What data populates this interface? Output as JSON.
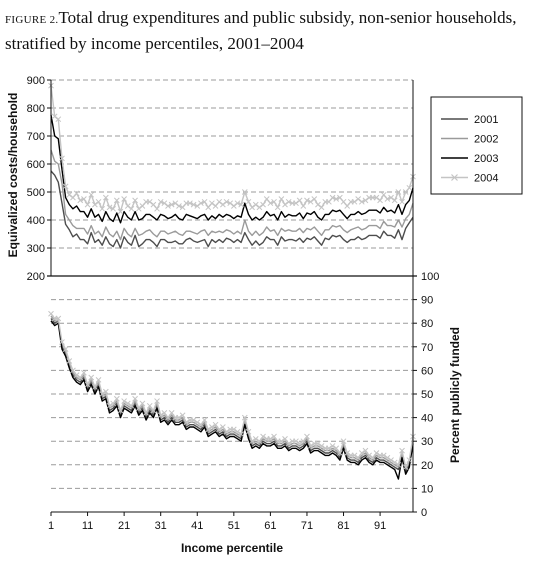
{
  "caption": {
    "label": "FIGURE 2.",
    "title": "Total drug expenditures and public subsidy, non-senior households, stratified by income percentiles, 2001–2004"
  },
  "chart_data": {
    "type": "line",
    "xlabel": "Income percentile",
    "ylabel_left": "Equivalized costs/household",
    "ylabel_right": "Percent publicly funded",
    "x_ticks": [
      "1",
      "11",
      "21",
      "31",
      "41",
      "51",
      "61",
      "71",
      "81",
      "91"
    ],
    "x_range": [
      1,
      100
    ],
    "top_panel": {
      "ylim": [
        200,
        900
      ],
      "y_ticks": [
        200,
        300,
        400,
        500,
        600,
        700,
        800,
        900
      ],
      "grid": true,
      "legend_position": "top-right",
      "series": [
        {
          "name": "2001",
          "color": "#4d4d4d",
          "marker": "none",
          "values": [
            575,
            560,
            535,
            460,
            385,
            365,
            340,
            350,
            330,
            330,
            315,
            355,
            320,
            330,
            310,
            340,
            315,
            305,
            330,
            300,
            340,
            320,
            310,
            345,
            305,
            315,
            330,
            330,
            320,
            305,
            330,
            330,
            320,
            320,
            325,
            315,
            315,
            330,
            335,
            325,
            320,
            325,
            330,
            305,
            330,
            320,
            330,
            320,
            335,
            330,
            320,
            330,
            320,
            355,
            330,
            310,
            325,
            310,
            320,
            340,
            330,
            330,
            310,
            340,
            325,
            330,
            330,
            325,
            335,
            320,
            335,
            330,
            340,
            325,
            310,
            335,
            330,
            345,
            340,
            345,
            330,
            320,
            330,
            330,
            340,
            330,
            335,
            345,
            345,
            345,
            335,
            360,
            345,
            345,
            335,
            365,
            330,
            370,
            390,
            410
          ]
        },
        {
          "name": "2002",
          "color": "#9a9a9a",
          "marker": "none",
          "values": [
            650,
            610,
            600,
            530,
            420,
            400,
            380,
            370,
            370,
            370,
            350,
            380,
            350,
            360,
            340,
            375,
            350,
            340,
            360,
            330,
            370,
            350,
            340,
            370,
            345,
            350,
            360,
            365,
            350,
            340,
            360,
            360,
            350,
            355,
            360,
            350,
            345,
            360,
            360,
            355,
            350,
            360,
            365,
            345,
            360,
            355,
            360,
            355,
            365,
            360,
            350,
            360,
            350,
            400,
            360,
            345,
            360,
            345,
            355,
            375,
            360,
            365,
            345,
            370,
            360,
            365,
            360,
            360,
            370,
            355,
            370,
            365,
            375,
            360,
            345,
            365,
            365,
            380,
            375,
            380,
            365,
            355,
            365,
            370,
            375,
            365,
            370,
            380,
            380,
            380,
            370,
            395,
            380,
            380,
            375,
            400,
            375,
            405,
            420,
            460
          ]
        },
        {
          "name": "2003",
          "color": "#000000",
          "marker": "none",
          "values": [
            775,
            700,
            690,
            580,
            480,
            455,
            440,
            450,
            430,
            430,
            410,
            440,
            410,
            420,
            395,
            430,
            405,
            395,
            425,
            390,
            430,
            410,
            400,
            430,
            400,
            405,
            420,
            420,
            410,
            400,
            420,
            415,
            405,
            410,
            420,
            405,
            400,
            420,
            415,
            410,
            405,
            415,
            420,
            400,
            415,
            405,
            420,
            410,
            420,
            415,
            405,
            415,
            410,
            460,
            420,
            400,
            410,
            400,
            410,
            430,
            415,
            420,
            400,
            430,
            410,
            420,
            415,
            415,
            425,
            405,
            425,
            420,
            430,
            410,
            400,
            420,
            420,
            435,
            430,
            435,
            420,
            405,
            420,
            420,
            430,
            420,
            425,
            435,
            435,
            435,
            425,
            445,
            430,
            435,
            425,
            455,
            420,
            455,
            470,
            515
          ]
        },
        {
          "name": "2004",
          "color": "#c4c4c4",
          "marker": "x",
          "values": [
            880,
            770,
            760,
            620,
            520,
            490,
            480,
            495,
            470,
            475,
            455,
            490,
            455,
            465,
            440,
            480,
            445,
            440,
            470,
            430,
            475,
            450,
            440,
            470,
            440,
            450,
            465,
            465,
            455,
            440,
            465,
            460,
            450,
            455,
            460,
            450,
            445,
            460,
            460,
            455,
            450,
            460,
            465,
            445,
            460,
            450,
            465,
            455,
            465,
            460,
            450,
            460,
            455,
            500,
            465,
            445,
            455,
            445,
            455,
            475,
            460,
            465,
            445,
            475,
            455,
            465,
            460,
            460,
            470,
            450,
            470,
            465,
            475,
            455,
            445,
            465,
            465,
            480,
            475,
            480,
            465,
            450,
            465,
            465,
            475,
            465,
            470,
            480,
            480,
            480,
            470,
            490,
            475,
            480,
            470,
            500,
            465,
            500,
            515,
            555
          ]
        }
      ]
    },
    "bottom_panel": {
      "ylim": [
        0,
        100
      ],
      "y_ticks": [
        0,
        10,
        20,
        30,
        40,
        50,
        60,
        70,
        80,
        90,
        100
      ],
      "grid": true,
      "series": [
        {
          "name": "2001",
          "color": "#4d4d4d",
          "marker": "none",
          "values": [
            82,
            80,
            81,
            70,
            67,
            62,
            58,
            56,
            55,
            57,
            52,
            55,
            51,
            54,
            48,
            49,
            43,
            44,
            46,
            41,
            45,
            44,
            43,
            46,
            42,
            44,
            40,
            43,
            41,
            45,
            39,
            40,
            38,
            40,
            38,
            38,
            39,
            36,
            37,
            37,
            36,
            35,
            37,
            33,
            34,
            35,
            33,
            34,
            32,
            33,
            33,
            32,
            31,
            38,
            32,
            28,
            29,
            28,
            30,
            29,
            29,
            30,
            28,
            28,
            29,
            27,
            28,
            28,
            27,
            28,
            30,
            26,
            27,
            27,
            26,
            25,
            25,
            26,
            25,
            23,
            28,
            23,
            22,
            22,
            21,
            23,
            24,
            22,
            21,
            23,
            22,
            22,
            21,
            20,
            19,
            18,
            24,
            17,
            20,
            30
          ]
        },
        {
          "name": "2002",
          "color": "#9a9a9a",
          "marker": "none",
          "values": [
            83,
            81,
            81,
            71,
            68,
            63,
            59,
            57,
            56,
            58,
            53,
            56,
            52,
            55,
            49,
            50,
            44,
            45,
            47,
            42,
            46,
            45,
            44,
            47,
            43,
            45,
            41,
            44,
            42,
            46,
            40,
            41,
            39,
            41,
            39,
            39,
            40,
            37,
            38,
            38,
            37,
            36,
            38,
            34,
            35,
            36,
            34,
            35,
            33,
            34,
            34,
            33,
            32,
            39,
            33,
            29,
            30,
            29,
            31,
            30,
            30,
            31,
            29,
            29,
            30,
            28,
            29,
            29,
            28,
            29,
            31,
            27,
            28,
            28,
            27,
            26,
            26,
            27,
            26,
            24,
            29,
            24,
            23,
            23,
            22,
            24,
            25,
            23,
            22,
            24,
            23,
            23,
            22,
            21,
            20,
            19,
            25,
            18,
            21,
            31
          ]
        },
        {
          "name": "2003",
          "color": "#000000",
          "marker": "none",
          "values": [
            81,
            79,
            80,
            69,
            66,
            61,
            57,
            55,
            54,
            56,
            51,
            54,
            50,
            53,
            47,
            48,
            42,
            43,
            45,
            40,
            44,
            43,
            42,
            45,
            41,
            43,
            39,
            42,
            40,
            44,
            38,
            39,
            37,
            39,
            37,
            37,
            38,
            35,
            36,
            36,
            35,
            34,
            36,
            32,
            33,
            34,
            32,
            33,
            31,
            32,
            32,
            31,
            30,
            37,
            31,
            27,
            28,
            27,
            29,
            28,
            28,
            29,
            27,
            27,
            28,
            26,
            27,
            27,
            26,
            27,
            29,
            25,
            26,
            26,
            25,
            24,
            24,
            25,
            24,
            22,
            27,
            22,
            21,
            21,
            20,
            22,
            23,
            21,
            20,
            22,
            21,
            21,
            20,
            19,
            18,
            14,
            23,
            16,
            19,
            29
          ]
        },
        {
          "name": "2004",
          "color": "#c4c4c4",
          "marker": "x",
          "values": [
            84,
            82,
            82,
            72,
            69,
            64,
            60,
            58,
            57,
            59,
            54,
            57,
            53,
            56,
            50,
            51,
            45,
            46,
            48,
            43,
            47,
            46,
            45,
            48,
            44,
            46,
            42,
            45,
            43,
            47,
            41,
            42,
            40,
            42,
            40,
            40,
            41,
            38,
            39,
            39,
            38,
            37,
            39,
            35,
            36,
            37,
            35,
            36,
            34,
            35,
            35,
            34,
            33,
            40,
            34,
            30,
            31,
            30,
            32,
            31,
            31,
            32,
            30,
            30,
            31,
            29,
            30,
            30,
            29,
            30,
            32,
            28,
            29,
            29,
            28,
            27,
            27,
            28,
            27,
            25,
            30,
            25,
            24,
            24,
            23,
            25,
            26,
            24,
            23,
            25,
            24,
            24,
            23,
            22,
            21,
            20,
            26,
            19,
            22,
            32
          ]
        }
      ]
    }
  }
}
